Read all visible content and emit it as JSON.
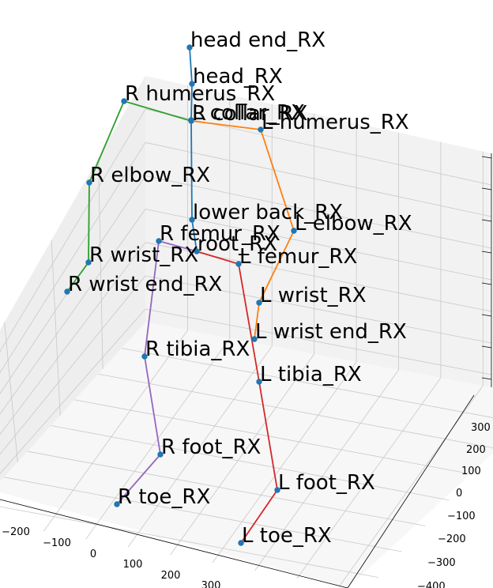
{
  "chart_data": {
    "type": "scatter",
    "projection": "3d",
    "title": "",
    "xlabel": "",
    "ylabel": "",
    "zlabel": "",
    "x_ticks": [
      "−200",
      "−100",
      "0",
      "100",
      "200",
      "300"
    ],
    "y_ticks": [
      "300",
      "200",
      "100",
      "0",
      "−100",
      "−200",
      "−300",
      "−400"
    ],
    "grid": true,
    "colors": {
      "spine": "#1f77b4",
      "left_arm": "#ff7f0e",
      "right_arm": "#2ca02c",
      "left_leg": "#d62728",
      "right_leg": "#9467bd",
      "marker": "#1f77b4"
    },
    "joints": [
      {
        "id": "head_end",
        "label": "head end_RX",
        "p": [
          240,
          60
        ]
      },
      {
        "id": "head",
        "label": "head_RX",
        "p": [
          243,
          106
        ]
      },
      {
        "id": "neck",
        "label": "R collar_RX",
        "p": [
          242,
          153
        ]
      },
      {
        "id": "l_collar",
        "label": "L collar_RX",
        "p": [
          242,
          152
        ]
      },
      {
        "id": "r_humerus",
        "label": "R humerus_RX",
        "p": [
          157,
          128
        ]
      },
      {
        "id": "l_humerus",
        "label": "L humerus_RX",
        "p": [
          330,
          164
        ]
      },
      {
        "id": "r_elbow",
        "label": "R elbow_RX",
        "p": [
          113,
          231
        ]
      },
      {
        "id": "l_elbow",
        "label": "L elbow_RX",
        "p": [
          372,
          292
        ]
      },
      {
        "id": "lower_back",
        "label": "lower back_RX",
        "p": [
          243,
          278
        ]
      },
      {
        "id": "root",
        "label": "root_RX",
        "p": [
          249,
          318
        ]
      },
      {
        "id": "r_femur",
        "label": "R femur_RX",
        "p": [
          201,
          305
        ]
      },
      {
        "id": "l_femur",
        "label": "L femur_RX",
        "p": [
          302,
          334
        ]
      },
      {
        "id": "r_wrist",
        "label": "R wrist_RX",
        "p": [
          112,
          332
        ]
      },
      {
        "id": "r_wrist_end",
        "label": "R wrist end_RX",
        "p": [
          85,
          369
        ]
      },
      {
        "id": "l_wrist",
        "label": "L wrist_RX",
        "p": [
          328,
          383
        ]
      },
      {
        "id": "l_wrist_end",
        "label": "L wrist end_RX",
        "p": [
          322,
          429
        ]
      },
      {
        "id": "r_tibia",
        "label": "R tibia_RX",
        "p": [
          183,
          451
        ]
      },
      {
        "id": "l_tibia",
        "label": "L tibia_RX",
        "p": [
          328,
          483
        ]
      },
      {
        "id": "r_foot",
        "label": "R foot_RX",
        "p": [
          203,
          575
        ]
      },
      {
        "id": "l_foot",
        "label": "L foot_RX",
        "p": [
          351,
          620
        ]
      },
      {
        "id": "r_toe",
        "label": "R toe_RX",
        "p": [
          148,
          638
        ]
      },
      {
        "id": "l_toe",
        "label": "L toe_RX",
        "p": [
          305,
          687
        ]
      }
    ],
    "bones": [
      {
        "chain": "spine",
        "from": "head_end",
        "to": "head"
      },
      {
        "chain": "spine",
        "from": "head",
        "to": "neck"
      },
      {
        "chain": "spine",
        "from": "neck",
        "to": "lower_back"
      },
      {
        "chain": "spine",
        "from": "lower_back",
        "to": "root"
      },
      {
        "chain": "right_arm",
        "from": "neck",
        "to": "r_humerus"
      },
      {
        "chain": "right_arm",
        "from": "r_humerus",
        "to": "r_elbow"
      },
      {
        "chain": "right_arm",
        "from": "r_elbow",
        "to": "r_wrist"
      },
      {
        "chain": "right_arm",
        "from": "r_wrist",
        "to": "r_wrist_end"
      },
      {
        "chain": "left_arm",
        "from": "neck",
        "to": "l_humerus"
      },
      {
        "chain": "left_arm",
        "from": "l_humerus",
        "to": "l_elbow"
      },
      {
        "chain": "left_arm",
        "from": "l_elbow",
        "to": "l_wrist"
      },
      {
        "chain": "left_arm",
        "from": "l_wrist",
        "to": "l_wrist_end"
      },
      {
        "chain": "left_leg",
        "from": "root",
        "to": "l_femur"
      },
      {
        "chain": "left_leg",
        "from": "l_femur",
        "to": "l_tibia"
      },
      {
        "chain": "left_leg",
        "from": "l_tibia",
        "to": "l_foot"
      },
      {
        "chain": "left_leg",
        "from": "l_foot",
        "to": "l_toe"
      },
      {
        "chain": "right_leg",
        "from": "root",
        "to": "r_femur"
      },
      {
        "chain": "right_leg",
        "from": "r_femur",
        "to": "r_tibia"
      },
      {
        "chain": "right_leg",
        "from": "r_tibia",
        "to": "r_foot"
      },
      {
        "chain": "right_leg",
        "from": "r_foot",
        "to": "r_toe"
      }
    ]
  }
}
